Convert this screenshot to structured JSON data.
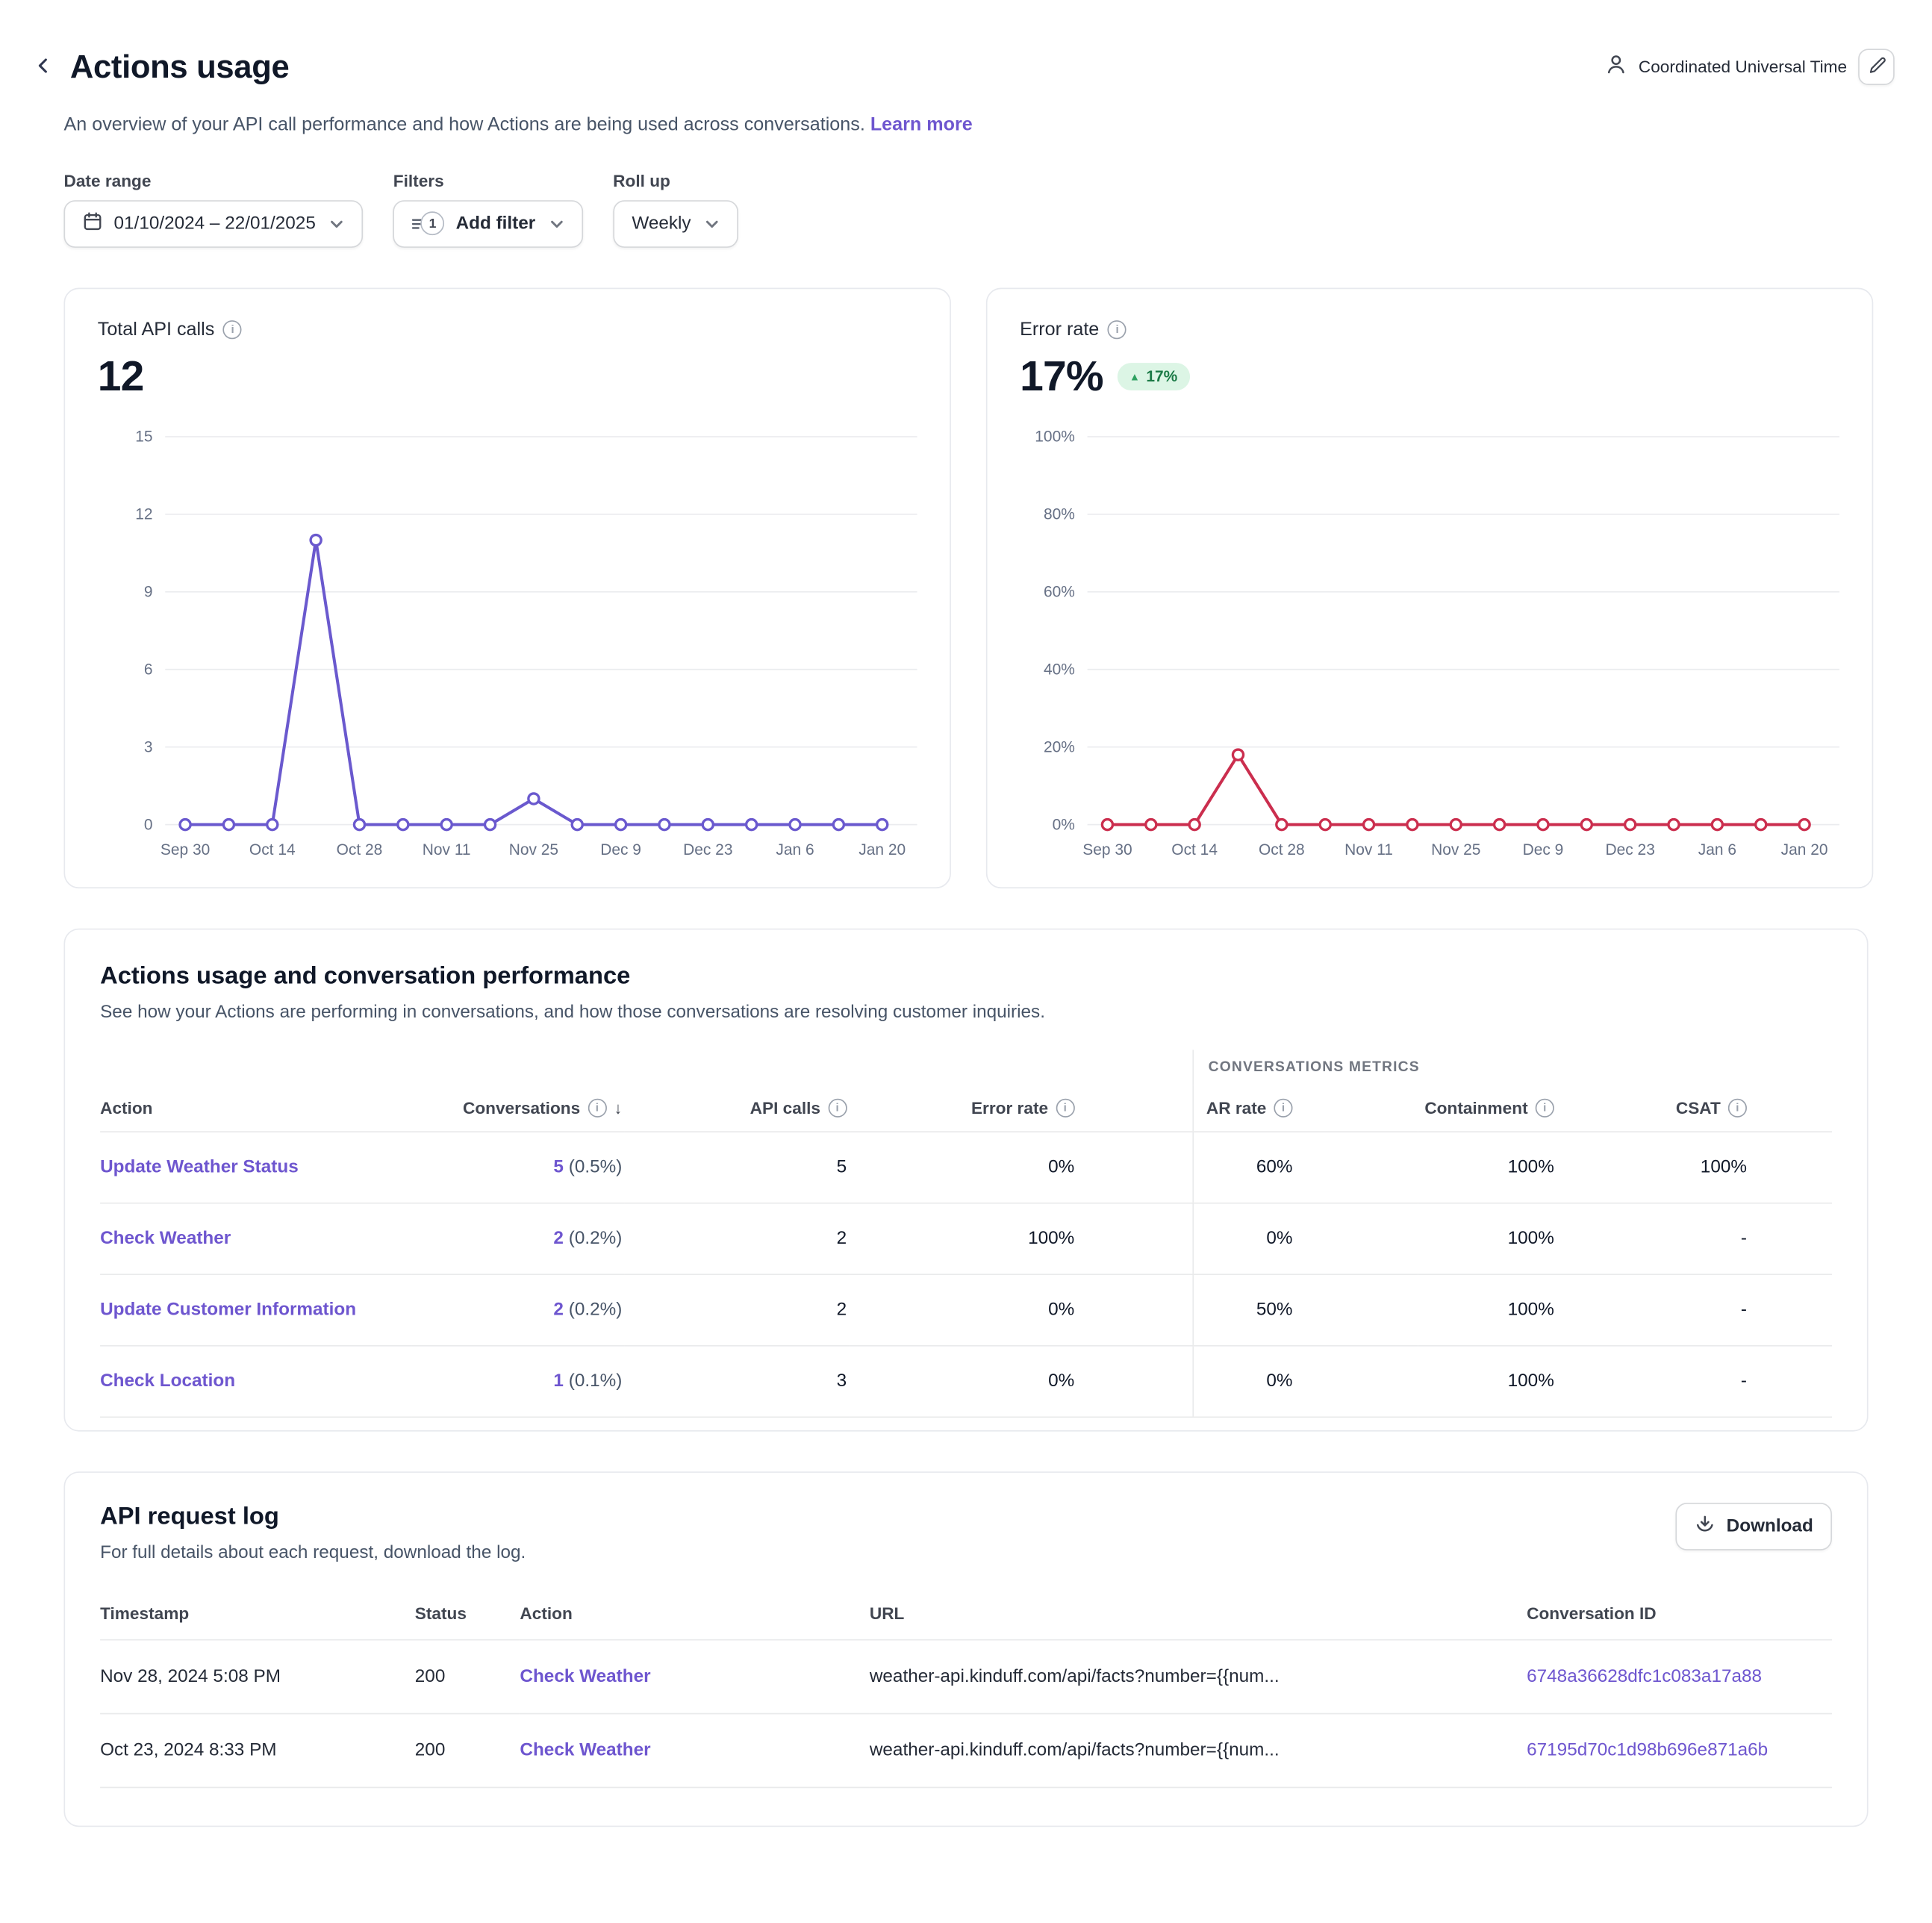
{
  "theme": {
    "accent_purple": "#6e56cf",
    "api_line_purple": "#6a59ce",
    "error_line_red": "#cb2e4e",
    "positive_green": "#15803d",
    "badge_bg_green": "#dcf5e5",
    "badge_text_green": "#1b7a46"
  },
  "header": {
    "title": "Actions usage",
    "timezone_label": "Coordinated Universal Time",
    "subtitle": "An overview of your API call performance and how Actions are being used across conversations.",
    "learn_more_label": "Learn more"
  },
  "filters": {
    "date_range_label": "Date range",
    "date_range_value": "01/10/2024 – 22/01/2025",
    "filters_label": "Filters",
    "filter_count": "1",
    "add_filter_label": "Add filter",
    "rollup_label": "Roll up",
    "rollup_value": "Weekly"
  },
  "chart_data": [
    {
      "type": "line",
      "title": "Total API calls",
      "big_value": "12",
      "x": [
        "Sep 30",
        "Oct 7",
        "Oct 14",
        "Oct 21",
        "Oct 28",
        "Nov 4",
        "Nov 11",
        "Nov 18",
        "Nov 25",
        "Dec 2",
        "Dec 9",
        "Dec 16",
        "Dec 23",
        "Dec 30",
        "Jan 6",
        "Jan 13",
        "Jan 20"
      ],
      "values": [
        0,
        0,
        0,
        11,
        0,
        0,
        0,
        0,
        1,
        0,
        0,
        0,
        0,
        0,
        0,
        0,
        0
      ],
      "y_ticks": [
        0,
        3,
        6,
        9,
        12,
        15
      ],
      "ylim": [
        0,
        15
      ],
      "y_suffix": "",
      "x_label_every": 2,
      "grid": true,
      "legend": "none",
      "color": "#6a59ce"
    },
    {
      "type": "line",
      "title": "Error rate",
      "big_value": "17%",
      "delta": "17%",
      "delta_direction": "up",
      "x": [
        "Sep 30",
        "Oct 7",
        "Oct 14",
        "Oct 21",
        "Oct 28",
        "Nov 4",
        "Nov 11",
        "Nov 18",
        "Nov 25",
        "Dec 2",
        "Dec 9",
        "Dec 16",
        "Dec 23",
        "Dec 30",
        "Jan 6",
        "Jan 13",
        "Jan 20"
      ],
      "values": [
        0,
        0,
        0,
        18,
        0,
        0,
        0,
        0,
        0,
        0,
        0,
        0,
        0,
        0,
        0,
        0,
        0
      ],
      "y_ticks": [
        0,
        20,
        40,
        60,
        80,
        100
      ],
      "ylim": [
        0,
        100
      ],
      "y_suffix": "%",
      "x_label_every": 2,
      "grid": true,
      "legend": "none",
      "color": "#cb2e4e"
    }
  ],
  "performance": {
    "title": "Actions usage and conversation performance",
    "subtitle": "See how your Actions are performing in conversations, and how those conversations are resolving customer inquiries.",
    "group_header": "CONVERSATIONS METRICS",
    "columns": [
      "Action",
      "Conversations",
      "API calls",
      "Error rate",
      "AR rate",
      "Containment",
      "CSAT"
    ],
    "rows": [
      {
        "action": "Update Weather Status",
        "conversations": "5",
        "conversations_pct": "(0.5%)",
        "api_calls": "5",
        "error_rate": "0%",
        "ar_rate": "60%",
        "containment": "100%",
        "csat": "100%"
      },
      {
        "action": "Check Weather",
        "conversations": "2",
        "conversations_pct": "(0.2%)",
        "api_calls": "2",
        "error_rate": "100%",
        "ar_rate": "0%",
        "containment": "100%",
        "csat": "-"
      },
      {
        "action": "Update Customer Information",
        "conversations": "2",
        "conversations_pct": "(0.2%)",
        "api_calls": "2",
        "error_rate": "0%",
        "ar_rate": "50%",
        "containment": "100%",
        "csat": "-"
      },
      {
        "action": "Check Location",
        "conversations": "1",
        "conversations_pct": "(0.1%)",
        "api_calls": "3",
        "error_rate": "0%",
        "ar_rate": "0%",
        "containment": "100%",
        "csat": "-"
      }
    ]
  },
  "request_log": {
    "title": "API request log",
    "subtitle": "For full details about each request, download the log.",
    "download_label": "Download",
    "columns": [
      "Timestamp",
      "Status",
      "Action",
      "URL",
      "Conversation ID"
    ],
    "rows": [
      {
        "timestamp": "Nov 28, 2024 5:08 PM",
        "status": "200",
        "action": "Check Weather",
        "url": "weather-api.kinduff.com/api/facts?number={{num...",
        "conversation_id": "6748a36628dfc1c083a17a88"
      },
      {
        "timestamp": "Oct 23, 2024 8:33 PM",
        "status": "200",
        "action": "Check Weather",
        "url": "weather-api.kinduff.com/api/facts?number={{num...",
        "conversation_id": "67195d70c1d98b696e871a6b"
      }
    ]
  }
}
